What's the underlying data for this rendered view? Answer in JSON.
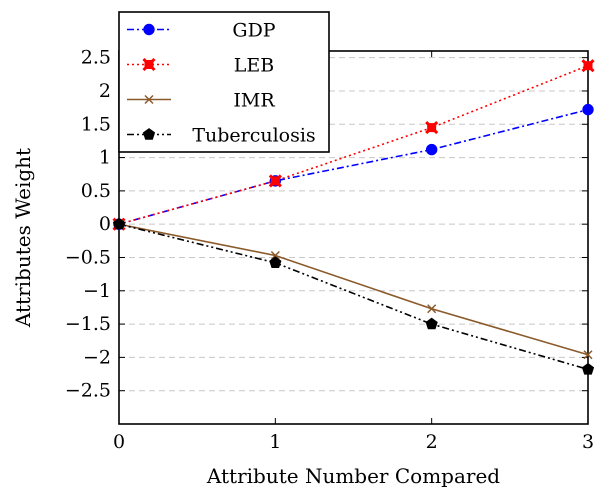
{
  "chart_data": {
    "type": "line",
    "title": "",
    "xlabel": "Attribute Number Compared",
    "ylabel": "Attributes Weight",
    "xlim": [
      0,
      3
    ],
    "ylim": [
      -3.0,
      2.6
    ],
    "x": [
      0,
      1,
      2,
      3
    ],
    "x_ticks": [
      "0",
      "1",
      "2",
      "3"
    ],
    "y_ticks": [
      {
        "value": 2.5,
        "label": "2.5"
      },
      {
        "value": 2,
        "label": "2"
      },
      {
        "value": 1.5,
        "label": "1.5"
      },
      {
        "value": 1,
        "label": "1"
      },
      {
        "value": 0.5,
        "label": "0.5"
      },
      {
        "value": 0,
        "label": "0"
      },
      {
        "value": -0.5,
        "label": "−0.5"
      },
      {
        "value": -1,
        "label": "−1"
      },
      {
        "value": -1.5,
        "label": "−1.5"
      },
      {
        "value": -2,
        "label": "−2"
      },
      {
        "value": -2.5,
        "label": "−2.5"
      }
    ],
    "grid": "horizontal dashed",
    "legend_position": "top-left",
    "series": [
      {
        "name": "GDP",
        "values": [
          0,
          0.65,
          1.12,
          1.72
        ],
        "color": "#0000ff",
        "dash": "dash-dot",
        "marker": "circle"
      },
      {
        "name": "LEB",
        "values": [
          0,
          0.65,
          1.45,
          2.38
        ],
        "color": "#ff0000",
        "dash": "dotted",
        "marker": "x-square"
      },
      {
        "name": "IMR",
        "values": [
          0,
          -0.47,
          -1.27,
          -1.96
        ],
        "color": "#8b5a2b",
        "dash": "solid",
        "marker": "x"
      },
      {
        "name": "Tuberculosis",
        "values": [
          0,
          -0.58,
          -1.5,
          -2.18
        ],
        "color": "#000000",
        "dash": "dash-dot-dot",
        "marker": "pentagon"
      }
    ]
  }
}
